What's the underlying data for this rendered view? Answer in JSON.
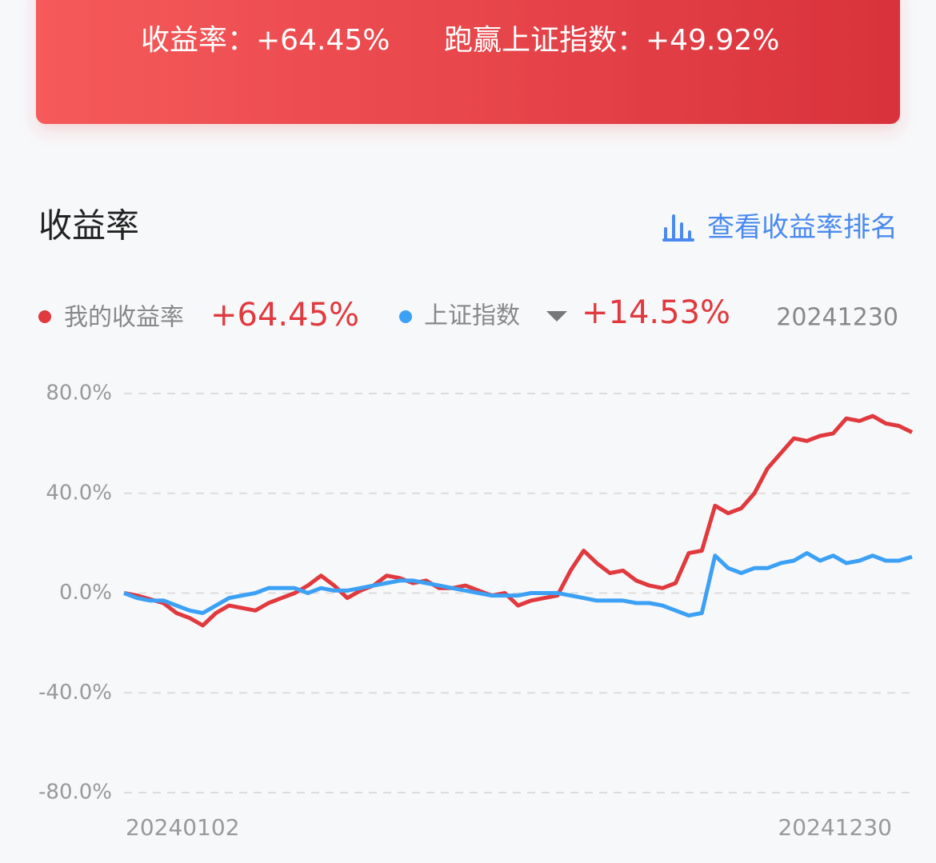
{
  "banner": {
    "return_label": "收益率：",
    "return_value": "+64.45%",
    "beat_label": "跑赢上证指数：",
    "beat_value": "+49.92%"
  },
  "section_title": "收益率",
  "ranking_link": "查看收益率排名",
  "chart_data": {
    "type": "line",
    "categories": [
      "20240102",
      null,
      null,
      null,
      null,
      null,
      null,
      null,
      null,
      null,
      null,
      null,
      null,
      null,
      null,
      null,
      null,
      null,
      null,
      null,
      null,
      null,
      null,
      null,
      null,
      null,
      null,
      null,
      null,
      null,
      null,
      null,
      null,
      null,
      null,
      null,
      null,
      null,
      null,
      null,
      null,
      null,
      null,
      null,
      null,
      null,
      null,
      null,
      null,
      null,
      null,
      null,
      null,
      null,
      null,
      null,
      null,
      null,
      null,
      null,
      "20241230"
    ],
    "series": [
      {
        "name": "我的收益率",
        "color": "#e0393e",
        "legend_value": "+64.45%",
        "values": [
          0,
          -1,
          -2.5,
          -4,
          -8,
          -10,
          -13,
          -8,
          -5,
          -6,
          -7,
          -4,
          -2,
          0,
          3,
          7,
          3,
          -2,
          1,
          3,
          7,
          6,
          4,
          5,
          2,
          2,
          3,
          1,
          -1,
          0,
          -5,
          -3,
          -2,
          -1,
          9,
          17,
          12,
          8,
          9,
          5,
          3,
          2,
          4,
          16,
          17,
          35,
          32,
          34,
          40,
          50,
          56,
          62,
          61,
          63,
          64,
          70,
          69,
          71,
          68,
          67,
          64.45
        ]
      },
      {
        "name": "上证指数",
        "color": "#3ca0f5",
        "legend_value": "+14.53%",
        "values": [
          0,
          -2,
          -3,
          -3,
          -5,
          -7,
          -8,
          -5,
          -2,
          -1,
          0,
          2,
          2,
          2,
          0,
          2,
          1,
          1,
          2,
          3,
          4,
          5,
          5,
          4,
          3,
          2,
          1,
          0,
          -1,
          -1,
          -1,
          0,
          0,
          0,
          -1,
          -2,
          -3,
          -3,
          -3,
          -4,
          -4,
          -5,
          -7,
          -9,
          -8,
          15,
          10,
          8,
          10,
          10,
          12,
          13,
          16,
          13,
          15,
          12,
          13,
          15,
          13,
          13,
          14.53
        ]
      }
    ],
    "ylim": [
      -80,
      80
    ],
    "yticks": [
      {
        "value": -80,
        "label": "-80.0%"
      },
      {
        "value": -40,
        "label": "-40.0%"
      },
      {
        "value": 0,
        "label": "0.0%"
      },
      {
        "value": 40,
        "label": "40.0%"
      },
      {
        "value": 80,
        "label": "80.0%"
      }
    ],
    "grid": true
  }
}
